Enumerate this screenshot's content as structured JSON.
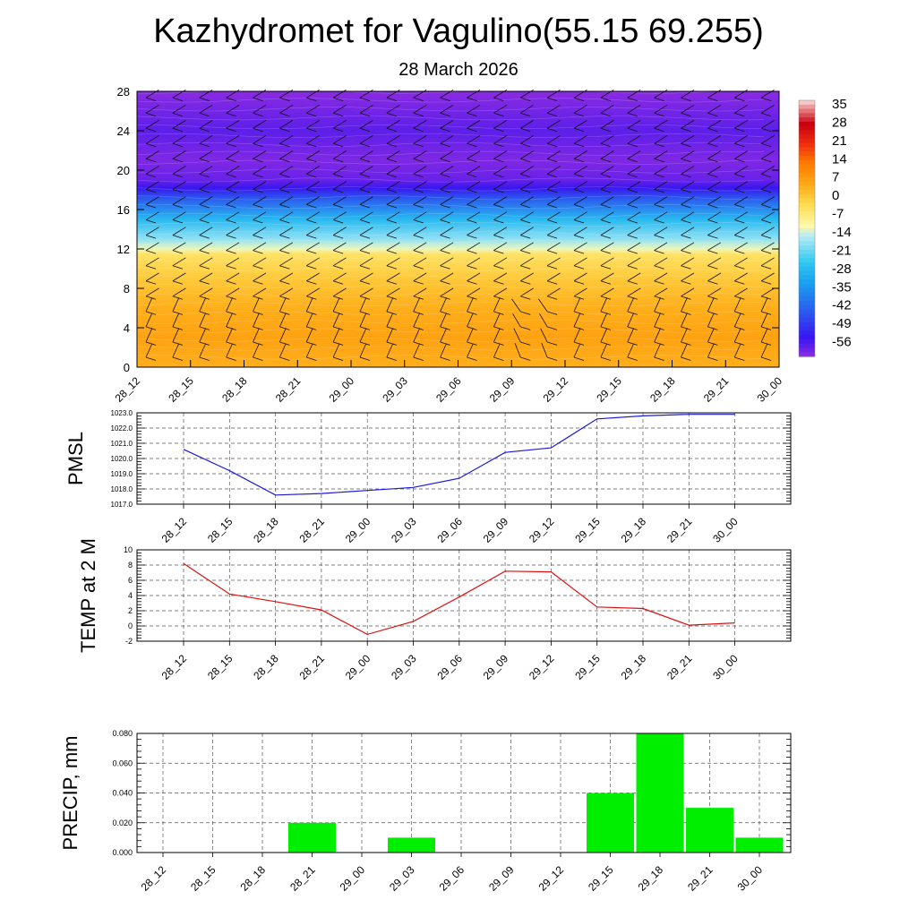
{
  "header": {
    "title": "Kazhydromet for Vagulino(55.15 69.255)",
    "subtitle": "28 March 2026"
  },
  "colors": {
    "pmsl_line": "#1a1adf",
    "temp_line": "#e01010",
    "precip_bar": "#00ee00",
    "grid": "#555555"
  },
  "chart_data": [
    {
      "id": "section",
      "type": "heatmap",
      "x": [
        "28_12",
        "28_15",
        "28_18",
        "28_21",
        "29_00",
        "29_03",
        "29_06",
        "29_09",
        "29_12",
        "29_15",
        "29_18",
        "29_21",
        "30_00"
      ],
      "yticks": [
        "0",
        "4",
        "8",
        "12",
        "16",
        "20",
        "24",
        "28"
      ],
      "ylim": [
        0,
        28
      ],
      "colorbar": {
        "labels": [
          "35",
          "28",
          "21",
          "14",
          "7",
          "0",
          "-7",
          "-14",
          "-21",
          "-28",
          "-35",
          "-42",
          "-49",
          "-56"
        ],
        "stops": [
          {
            "v": -63,
            "c": "#8a2be2"
          },
          {
            "v": -56,
            "c": "#3a16ef"
          },
          {
            "v": -45,
            "c": "#2a60ef"
          },
          {
            "v": -35,
            "c": "#1aa0f0"
          },
          {
            "v": -27,
            "c": "#30c8f0"
          },
          {
            "v": -17,
            "c": "#b7ecf5"
          },
          {
            "v": -13,
            "c": "#fff9a8"
          },
          {
            "v": -5,
            "c": "#ffdc50"
          },
          {
            "v": 3,
            "c": "#ffa815"
          },
          {
            "v": 11,
            "c": "#ff7a00"
          },
          {
            "v": 18,
            "c": "#f03010"
          },
          {
            "v": 26,
            "c": "#c80010"
          },
          {
            "v": 33,
            "c": "#f0a5a5"
          },
          {
            "v": 35,
            "c": "#fbe0e0"
          }
        ]
      },
      "profile": [
        {
          "h": 0,
          "v": 2
        },
        {
          "h": 3,
          "v": 4
        },
        {
          "h": 6,
          "v": 2
        },
        {
          "h": 9,
          "v": -2
        },
        {
          "h": 11.5,
          "v": -7
        },
        {
          "h": 12,
          "v": -14
        },
        {
          "h": 13,
          "v": -20
        },
        {
          "h": 15,
          "v": -30
        },
        {
          "h": 17,
          "v": -45
        },
        {
          "h": 18.2,
          "v": -56
        },
        {
          "h": 19,
          "v": -60
        },
        {
          "h": 21,
          "v": -62
        },
        {
          "h": 24,
          "v": -59
        },
        {
          "h": 28,
          "v": -63
        }
      ]
    },
    {
      "id": "pmsl",
      "type": "line",
      "ylabel": "PMSL",
      "x": [
        "28_12",
        "28_15",
        "28_18",
        "28_21",
        "29_00",
        "29_03",
        "29_06",
        "29_09",
        "29_12",
        "29_15",
        "29_18",
        "29_21",
        "30_00"
      ],
      "values": [
        1020.6,
        1019.2,
        1017.6,
        1017.7,
        1017.9,
        1018.1,
        1018.7,
        1020.4,
        1020.7,
        1022.6,
        1022.8,
        1022.9,
        1022.9
      ],
      "yticks": [
        "1017.0",
        "1018.0",
        "1019.0",
        "1020.0",
        "1021.0",
        "1022.0",
        "1023.0"
      ],
      "ylim": [
        1017,
        1023
      ]
    },
    {
      "id": "temp",
      "type": "line",
      "ylabel": "TEMP at 2 M",
      "x": [
        "28_12",
        "28_15",
        "28_18",
        "28_21",
        "29_00",
        "29_03",
        "29_06",
        "29_09",
        "29_12",
        "29_15",
        "29_18",
        "29_21",
        "30_00"
      ],
      "values": [
        8.2,
        4.2,
        3.2,
        2.1,
        -1.1,
        0.6,
        3.8,
        7.2,
        7.1,
        2.5,
        2.3,
        0.1,
        0.4
      ],
      "yticks": [
        "-2",
        "0",
        "2",
        "4",
        "6",
        "8",
        "10"
      ],
      "ylim": [
        -2,
        10
      ]
    },
    {
      "id": "precip",
      "type": "bar",
      "ylabel": "PRECIP, mm",
      "x": [
        "28_12",
        "28_15",
        "28_18",
        "28_21",
        "29_00",
        "29_03",
        "29_06",
        "29_09",
        "29_12",
        "29_15",
        "29_18",
        "29_21",
        "30_00"
      ],
      "values": [
        0,
        0,
        0,
        0.02,
        0,
        0.01,
        0,
        0,
        0,
        0.04,
        0.08,
        0.03,
        0.01
      ],
      "yticks": [
        "0.000",
        "0.020",
        "0.040",
        "0.060",
        "0.080"
      ],
      "ylim": [
        0,
        0.08
      ]
    }
  ]
}
